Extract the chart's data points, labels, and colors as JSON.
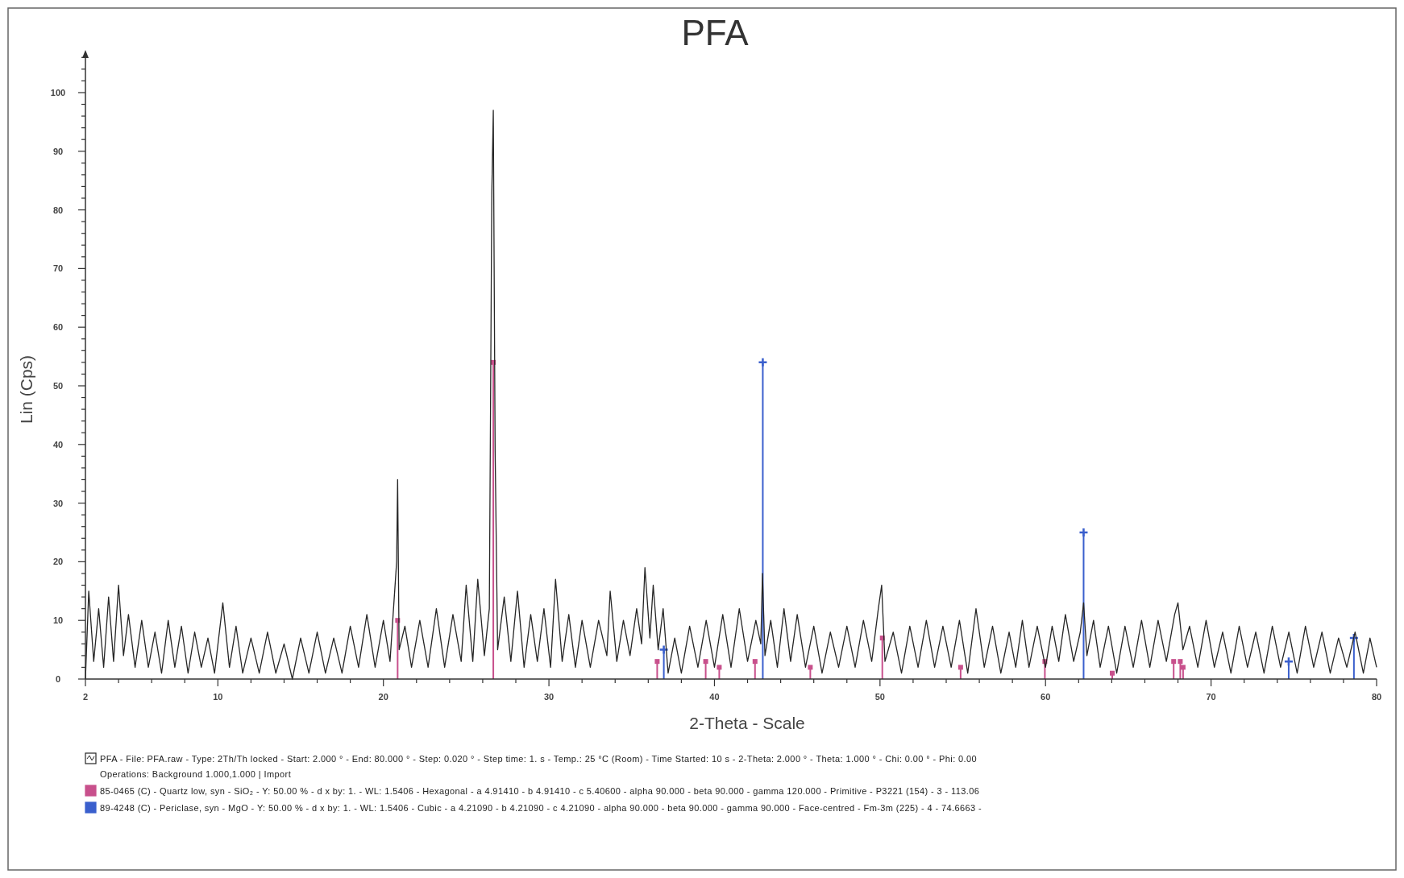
{
  "chart_data": {
    "type": "line",
    "title": "PFA",
    "xlabel": "2-Theta - Scale",
    "ylabel": "Lin (Cps)",
    "xlim": [
      2,
      80
    ],
    "ylim": [
      0,
      107
    ],
    "xticks": [
      2,
      {
        "value": 4,
        "label": null
      },
      {
        "value": 6,
        "label": null
      },
      {
        "value": 8,
        "label": null
      },
      10,
      {
        "value": 12,
        "label": null
      },
      {
        "value": 14,
        "label": null
      },
      {
        "value": 16,
        "label": null
      },
      {
        "value": 18,
        "label": null
      },
      20,
      {
        "value": 22,
        "label": null
      },
      {
        "value": 24,
        "label": null
      },
      {
        "value": 26,
        "label": null
      },
      {
        "value": 28,
        "label": null
      },
      30,
      {
        "value": 32,
        "label": null
      },
      {
        "value": 34,
        "label": null
      },
      {
        "value": 36,
        "label": null
      },
      {
        "value": 38,
        "label": null
      },
      40,
      {
        "value": 42,
        "label": null
      },
      {
        "value": 44,
        "label": null
      },
      {
        "value": 46,
        "label": null
      },
      {
        "value": 48,
        "label": null
      },
      50,
      {
        "value": 52,
        "label": null
      },
      {
        "value": 54,
        "label": null
      },
      {
        "value": 56,
        "label": null
      },
      {
        "value": 58,
        "label": null
      },
      60,
      {
        "value": 62,
        "label": null
      },
      {
        "value": 64,
        "label": null
      },
      {
        "value": 66,
        "label": null
      },
      {
        "value": 68,
        "label": null
      },
      70,
      {
        "value": 72,
        "label": null
      },
      {
        "value": 74,
        "label": null
      },
      {
        "value": 76,
        "label": null
      },
      {
        "value": 78,
        "label": null
      },
      80
    ],
    "yticks": [
      0,
      {
        "value": 2,
        "label": null
      },
      {
        "value": 4,
        "label": null
      },
      {
        "value": 6,
        "label": null
      },
      {
        "value": 8,
        "label": null
      },
      10,
      {
        "value": 12,
        "label": null
      },
      {
        "value": 14,
        "label": null
      },
      {
        "value": 16,
        "label": null
      },
      {
        "value": 18,
        "label": null
      },
      20,
      {
        "value": 22,
        "label": null
      },
      {
        "value": 24,
        "label": null
      },
      {
        "value": 26,
        "label": null
      },
      {
        "value": 28,
        "label": null
      },
      30,
      {
        "value": 32,
        "label": null
      },
      {
        "value": 34,
        "label": null
      },
      {
        "value": 36,
        "label": null
      },
      {
        "value": 38,
        "label": null
      },
      40,
      {
        "value": 42,
        "label": null
      },
      {
        "value": 44,
        "label": null
      },
      {
        "value": 46,
        "label": null
      },
      {
        "value": 48,
        "label": null
      },
      50,
      {
        "value": 52,
        "label": null
      },
      {
        "value": 54,
        "label": null
      },
      {
        "value": 56,
        "label": null
      },
      {
        "value": 58,
        "label": null
      },
      60,
      {
        "value": 62,
        "label": null
      },
      {
        "value": 64,
        "label": null
      },
      {
        "value": 66,
        "label": null
      },
      {
        "value": 68,
        "label": null
      },
      70,
      {
        "value": 72,
        "label": null
      },
      {
        "value": 74,
        "label": null
      },
      {
        "value": 76,
        "label": null
      },
      {
        "value": 78,
        "label": null
      },
      80,
      {
        "value": 82,
        "label": null
      },
      {
        "value": 84,
        "label": null
      },
      {
        "value": 86,
        "label": null
      },
      {
        "value": 88,
        "label": null
      },
      90,
      {
        "value": 92,
        "label": null
      },
      {
        "value": 94,
        "label": null
      },
      {
        "value": 96,
        "label": null
      },
      {
        "value": 98,
        "label": null
      },
      100,
      {
        "value": 102,
        "label": null
      },
      {
        "value": 104,
        "label": null
      },
      {
        "value": 106,
        "label": null
      }
    ],
    "grid": false,
    "legend": "bottom",
    "series": [
      {
        "name": "PFA - File: PFA.raw - Type: 2Th/Th locked - Start: 2.000 ° - End: 80.000 ° - Step: 0.020 ° - Step time: 1. s - Temp.: 25 °C (Room) - Time Started: 10 s - 2-Theta: 2.000 ° - Theta: 1.000 ° - Chi: 0.00 ° - Phi: 0.00",
        "color": "#262626",
        "marker": "none",
        "line_style": "solid",
        "x": [
          2.0,
          2.2,
          2.5,
          2.8,
          3.1,
          3.4,
          3.7,
          4.0,
          4.3,
          4.6,
          5.0,
          5.4,
          5.8,
          6.2,
          6.6,
          7.0,
          7.4,
          7.8,
          8.2,
          8.6,
          9.0,
          9.4,
          9.8,
          10.3,
          10.7,
          11.1,
          11.5,
          12.0,
          12.5,
          13.0,
          13.5,
          14.0,
          14.5,
          15.0,
          15.5,
          16.0,
          16.5,
          17.0,
          17.5,
          18.0,
          18.5,
          19.0,
          19.5,
          20.0,
          20.4,
          20.8,
          20.86,
          20.95,
          21.3,
          21.7,
          22.2,
          22.7,
          23.2,
          23.7,
          24.2,
          24.7,
          25.0,
          25.4,
          25.7,
          26.1,
          26.4,
          26.55,
          26.64,
          26.75,
          26.9,
          27.3,
          27.7,
          28.1,
          28.5,
          28.9,
          29.3,
          29.7,
          30.1,
          30.4,
          30.8,
          31.2,
          31.6,
          32.0,
          32.5,
          33.0,
          33.5,
          33.7,
          34.1,
          34.5,
          34.9,
          35.3,
          35.6,
          35.8,
          36.1,
          36.3,
          36.6,
          36.9,
          37.2,
          37.6,
          38.0,
          38.5,
          39.0,
          39.5,
          40.0,
          40.5,
          41.0,
          41.5,
          42.0,
          42.5,
          42.8,
          42.9,
          43.05,
          43.4,
          43.8,
          44.2,
          44.6,
          45.0,
          45.5,
          46.0,
          46.5,
          47.0,
          47.5,
          48.0,
          48.5,
          49.0,
          49.5,
          49.9,
          50.1,
          50.3,
          50.8,
          51.3,
          51.8,
          52.3,
          52.8,
          53.3,
          53.8,
          54.3,
          54.8,
          55.3,
          55.8,
          56.3,
          56.8,
          57.3,
          57.8,
          58.2,
          58.6,
          59.0,
          59.5,
          60.0,
          60.4,
          60.8,
          61.2,
          61.7,
          62.1,
          62.3,
          62.5,
          62.9,
          63.3,
          63.8,
          64.3,
          64.8,
          65.3,
          65.8,
          66.3,
          66.8,
          67.3,
          67.8,
          68.0,
          68.3,
          68.7,
          69.2,
          69.7,
          70.2,
          70.7,
          71.2,
          71.7,
          72.2,
          72.7,
          73.2,
          73.7,
          74.2,
          74.7,
          75.2,
          75.7,
          76.2,
          76.7,
          77.2,
          77.7,
          78.2,
          78.7,
          79.2,
          79.6,
          80.0
        ],
        "values": [
          0,
          15,
          3,
          12,
          2,
          14,
          3,
          16,
          4,
          11,
          2,
          10,
          2,
          8,
          1,
          10,
          2,
          9,
          1,
          8,
          2,
          7,
          1,
          13,
          2,
          9,
          1,
          7,
          1,
          8,
          1,
          6,
          0,
          7,
          1,
          8,
          1,
          7,
          1,
          9,
          2,
          11,
          2,
          10,
          3,
          20,
          34,
          5,
          9,
          2,
          10,
          2,
          12,
          2,
          11,
          3,
          16,
          3,
          17,
          4,
          12,
          83,
          97,
          39,
          5,
          14,
          3,
          15,
          2,
          11,
          3,
          12,
          2,
          17,
          3,
          11,
          2,
          10,
          2,
          10,
          4,
          15,
          3,
          10,
          4,
          12,
          6,
          19,
          7,
          16,
          5,
          12,
          1,
          7,
          1,
          9,
          2,
          10,
          2,
          11,
          2,
          12,
          3,
          10,
          6,
          18,
          4,
          10,
          2,
          12,
          3,
          11,
          2,
          9,
          1,
          8,
          2,
          9,
          2,
          10,
          3,
          12,
          16,
          3,
          8,
          1,
          9,
          2,
          10,
          2,
          9,
          2,
          10,
          1,
          12,
          2,
          9,
          1,
          8,
          2,
          10,
          2,
          9,
          2,
          9,
          3,
          11,
          3,
          8,
          13,
          4,
          10,
          2,
          9,
          1,
          9,
          2,
          10,
          2,
          10,
          3,
          11,
          13,
          5,
          9,
          2,
          10,
          2,
          8,
          1,
          9,
          2,
          8,
          1,
          9,
          2,
          8,
          1,
          9,
          2,
          8,
          1,
          7,
          2,
          8,
          1,
          7,
          2
        ]
      },
      {
        "name": "85-0465 (C) - Quartz low, syn - SiO₂ - Y: 50.00 % - d x by: 1. - WL: 1.5406 - Hexagonal - a 4.91410 - b 4.91410 - c 5.40600 - alpha 90.000 - beta 90.000 - gamma 120.000 - Primitive - P3221 (154) - 3 - 113.06",
        "type": "lollipop",
        "color": "#c8508c",
        "marker": "square",
        "x": [
          20.86,
          26.64,
          36.54,
          39.47,
          40.29,
          42.45,
          45.79,
          50.14,
          54.87,
          59.96,
          64.03,
          67.74,
          68.14,
          68.31
        ],
        "values": [
          10,
          54,
          3,
          3,
          2,
          3,
          2,
          7,
          2,
          3,
          1,
          3,
          3,
          2
        ]
      },
      {
        "name": "89-4248 (C) - Periclase, syn - MgO - Y: 50.00 % - d x by: 1. - WL: 1.5406 - Cubic - a 4.21090 - b 4.21090 - c 4.21090 - alpha 90.000 - beta 90.000 - gamma 90.000 - Face-centred - Fm-3m (225) - 4 - 74.6663 -",
        "type": "lollipop",
        "color": "#3a5fcd",
        "marker": "cross",
        "x": [
          36.94,
          42.92,
          62.3,
          74.69,
          78.63
        ],
        "values": [
          5,
          54,
          25,
          3,
          7
        ]
      }
    ],
    "annotations": [
      "Operations: Background 1.000,1.000 | Import"
    ]
  }
}
